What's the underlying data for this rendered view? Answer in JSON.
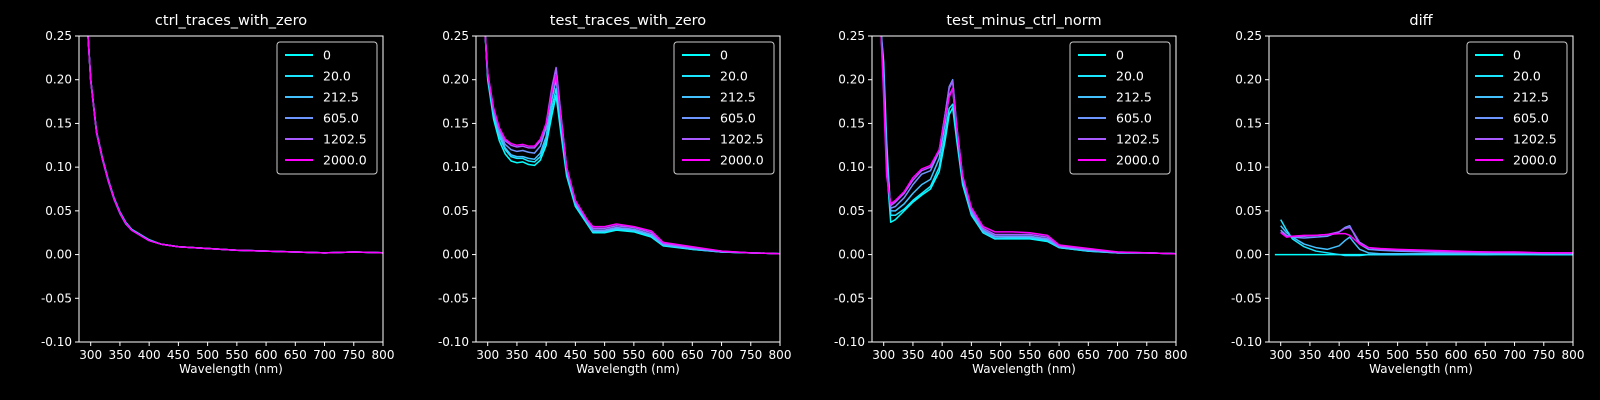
{
  "figure": {
    "background": "#000000",
    "foreground": "#ffffff"
  },
  "legend": {
    "labels": [
      "0",
      "20.0",
      "212.5",
      "605.0",
      "1202.5",
      "2000.0"
    ],
    "colors": [
      "#00ffff",
      "#1ae6ff",
      "#44c0ff",
      "#6e96ff",
      "#a85cff",
      "#ff00ff"
    ],
    "position": "upper right"
  },
  "chart_data": [
    {
      "type": "line",
      "title": "ctrl_traces_with_zero",
      "xlabel": "Wavelength (nm)",
      "ylabel": "",
      "xlim": [
        280,
        800
      ],
      "ylim": [
        -0.1,
        0.25
      ],
      "xticks": [
        300,
        350,
        400,
        450,
        500,
        550,
        600,
        650,
        700,
        750,
        800
      ],
      "yticks": [
        -0.1,
        -0.05,
        0.0,
        0.05,
        0.1,
        0.15,
        0.2,
        0.25
      ],
      "grid": false,
      "x": [
        295,
        300,
        310,
        320,
        330,
        340,
        350,
        360,
        370,
        380,
        400,
        420,
        450,
        500,
        550,
        600,
        650,
        700,
        750,
        800
      ],
      "series": [
        {
          "name": "0",
          "values": [
            0.255,
            0.2,
            0.14,
            0.11,
            0.085,
            0.064,
            0.048,
            0.036,
            0.028,
            0.024,
            0.016,
            0.012,
            0.009,
            0.007,
            0.005,
            0.004,
            0.003,
            0.002,
            0.003,
            0.002
          ]
        },
        {
          "name": "20.0",
          "values": [
            0.255,
            0.201,
            0.141,
            0.111,
            0.086,
            0.065,
            0.049,
            0.037,
            0.029,
            0.025,
            0.017,
            0.012,
            0.009,
            0.007,
            0.005,
            0.004,
            0.003,
            0.002,
            0.003,
            0.002
          ]
        },
        {
          "name": "212.5",
          "values": [
            0.255,
            0.2,
            0.14,
            0.11,
            0.085,
            0.064,
            0.048,
            0.036,
            0.028,
            0.024,
            0.016,
            0.012,
            0.009,
            0.007,
            0.005,
            0.004,
            0.003,
            0.002,
            0.003,
            0.002
          ]
        },
        {
          "name": "605.0",
          "values": [
            0.255,
            0.199,
            0.139,
            0.109,
            0.084,
            0.063,
            0.047,
            0.035,
            0.028,
            0.024,
            0.016,
            0.012,
            0.009,
            0.007,
            0.005,
            0.004,
            0.003,
            0.002,
            0.003,
            0.002
          ]
        },
        {
          "name": "1202.5",
          "values": [
            0.255,
            0.2,
            0.14,
            0.11,
            0.085,
            0.064,
            0.048,
            0.036,
            0.028,
            0.024,
            0.016,
            0.012,
            0.009,
            0.007,
            0.005,
            0.004,
            0.003,
            0.002,
            0.003,
            0.002
          ]
        },
        {
          "name": "2000.0",
          "values": [
            0.255,
            0.2,
            0.14,
            0.11,
            0.085,
            0.064,
            0.048,
            0.036,
            0.028,
            0.024,
            0.016,
            0.012,
            0.009,
            0.007,
            0.005,
            0.004,
            0.003,
            0.002,
            0.003,
            0.002
          ]
        }
      ]
    },
    {
      "type": "line",
      "title": "test_traces_with_zero",
      "xlabel": "Wavelength (nm)",
      "ylabel": "",
      "xlim": [
        280,
        800
      ],
      "ylim": [
        -0.1,
        0.25
      ],
      "xticks": [
        300,
        350,
        400,
        450,
        500,
        550,
        600,
        650,
        700,
        750,
        800
      ],
      "yticks": [
        -0.1,
        -0.05,
        0.0,
        0.05,
        0.1,
        0.15,
        0.2,
        0.25
      ],
      "grid": false,
      "x": [
        295,
        300,
        310,
        320,
        330,
        340,
        350,
        360,
        370,
        380,
        390,
        400,
        410,
        417,
        425,
        435,
        450,
        470,
        480,
        500,
        520,
        550,
        580,
        600,
        650,
        700,
        750,
        800
      ],
      "series": [
        {
          "name": "0",
          "values": [
            0.26,
            0.2,
            0.155,
            0.13,
            0.115,
            0.107,
            0.105,
            0.106,
            0.103,
            0.102,
            0.108,
            0.125,
            0.16,
            0.182,
            0.14,
            0.09,
            0.055,
            0.035,
            0.025,
            0.025,
            0.028,
            0.026,
            0.02,
            0.01,
            0.006,
            0.003,
            0.002,
            0.001
          ]
        },
        {
          "name": "20.0",
          "values": [
            0.26,
            0.203,
            0.16,
            0.135,
            0.12,
            0.112,
            0.11,
            0.11,
            0.107,
            0.106,
            0.112,
            0.13,
            0.168,
            0.19,
            0.147,
            0.093,
            0.057,
            0.036,
            0.026,
            0.026,
            0.029,
            0.027,
            0.021,
            0.011,
            0.006,
            0.003,
            0.002,
            0.001
          ]
        },
        {
          "name": "212.5",
          "values": [
            0.26,
            0.204,
            0.162,
            0.137,
            0.122,
            0.114,
            0.112,
            0.112,
            0.11,
            0.109,
            0.116,
            0.135,
            0.178,
            0.2,
            0.153,
            0.095,
            0.058,
            0.037,
            0.027,
            0.027,
            0.03,
            0.028,
            0.022,
            0.011,
            0.007,
            0.003,
            0.002,
            0.001
          ]
        },
        {
          "name": "605.0",
          "values": [
            0.26,
            0.206,
            0.165,
            0.14,
            0.126,
            0.12,
            0.118,
            0.119,
            0.117,
            0.116,
            0.124,
            0.145,
            0.19,
            0.213,
            0.16,
            0.098,
            0.06,
            0.038,
            0.028,
            0.028,
            0.031,
            0.029,
            0.023,
            0.012,
            0.007,
            0.003,
            0.002,
            0.001
          ]
        },
        {
          "name": "1202.5",
          "values": [
            0.26,
            0.207,
            0.167,
            0.143,
            0.13,
            0.125,
            0.123,
            0.124,
            0.122,
            0.122,
            0.13,
            0.15,
            0.192,
            0.214,
            0.162,
            0.1,
            0.061,
            0.039,
            0.03,
            0.03,
            0.033,
            0.031,
            0.025,
            0.013,
            0.008,
            0.004,
            0.002,
            0.001
          ]
        },
        {
          "name": "2000.0",
          "values": [
            0.26,
            0.208,
            0.168,
            0.145,
            0.132,
            0.127,
            0.125,
            0.126,
            0.124,
            0.124,
            0.132,
            0.15,
            0.186,
            0.205,
            0.158,
            0.1,
            0.062,
            0.04,
            0.032,
            0.032,
            0.035,
            0.032,
            0.027,
            0.014,
            0.009,
            0.004,
            0.002,
            0.001
          ]
        }
      ]
    },
    {
      "type": "line",
      "title": "test_minus_ctrl_norm",
      "xlabel": "Wavelength (nm)",
      "ylabel": "",
      "xlim": [
        280,
        800
      ],
      "ylim": [
        -0.1,
        0.25
      ],
      "xticks": [
        300,
        350,
        400,
        450,
        500,
        550,
        600,
        650,
        700,
        750,
        800
      ],
      "yticks": [
        -0.1,
        -0.05,
        0.0,
        0.05,
        0.1,
        0.15,
        0.2,
        0.25
      ],
      "grid": false,
      "x": [
        295,
        300,
        305,
        312,
        320,
        335,
        350,
        365,
        380,
        395,
        405,
        412,
        418,
        425,
        435,
        450,
        470,
        490,
        520,
        550,
        580,
        600,
        650,
        700,
        750,
        800
      ],
      "series": [
        {
          "name": "0",
          "values": [
            0.26,
            0.2,
            0.1,
            0.037,
            0.04,
            0.05,
            0.06,
            0.068,
            0.075,
            0.095,
            0.13,
            0.16,
            0.168,
            0.13,
            0.08,
            0.045,
            0.025,
            0.018,
            0.018,
            0.018,
            0.015,
            0.008,
            0.004,
            0.002,
            0.002,
            0.001
          ]
        },
        {
          "name": "20.0",
          "values": [
            0.26,
            0.22,
            0.13,
            0.045,
            0.045,
            0.052,
            0.062,
            0.07,
            0.078,
            0.1,
            0.138,
            0.167,
            0.172,
            0.133,
            0.082,
            0.046,
            0.025,
            0.018,
            0.019,
            0.019,
            0.016,
            0.008,
            0.004,
            0.002,
            0.002,
            0.001
          ]
        },
        {
          "name": "212.5",
          "values": [
            0.26,
            0.21,
            0.12,
            0.05,
            0.05,
            0.058,
            0.07,
            0.08,
            0.086,
            0.11,
            0.15,
            0.182,
            0.19,
            0.14,
            0.085,
            0.048,
            0.027,
            0.02,
            0.02,
            0.02,
            0.017,
            0.009,
            0.005,
            0.002,
            0.002,
            0.001
          ]
        },
        {
          "name": "605.0",
          "values": [
            0.26,
            0.2,
            0.1,
            0.053,
            0.055,
            0.065,
            0.08,
            0.092,
            0.096,
            0.118,
            0.16,
            0.192,
            0.2,
            0.145,
            0.088,
            0.05,
            0.028,
            0.021,
            0.021,
            0.021,
            0.018,
            0.009,
            0.005,
            0.002,
            0.002,
            0.001
          ]
        },
        {
          "name": "1202.5",
          "values": [
            0.26,
            0.19,
            0.095,
            0.056,
            0.06,
            0.07,
            0.085,
            0.096,
            0.1,
            0.12,
            0.16,
            0.19,
            0.198,
            0.147,
            0.09,
            0.052,
            0.03,
            0.023,
            0.023,
            0.023,
            0.02,
            0.01,
            0.006,
            0.003,
            0.002,
            0.001
          ]
        },
        {
          "name": "2000.0",
          "values": [
            0.26,
            0.18,
            0.09,
            0.058,
            0.062,
            0.072,
            0.088,
            0.098,
            0.102,
            0.12,
            0.156,
            0.18,
            0.19,
            0.145,
            0.09,
            0.054,
            0.032,
            0.026,
            0.026,
            0.025,
            0.022,
            0.011,
            0.007,
            0.003,
            0.002,
            0.001
          ]
        }
      ]
    },
    {
      "type": "line",
      "title": "diff",
      "xlabel": "Wavelength (nm)",
      "ylabel": "",
      "xlim": [
        280,
        800
      ],
      "ylim": [
        -0.1,
        0.25
      ],
      "xticks": [
        300,
        350,
        400,
        450,
        500,
        550,
        600,
        650,
        700,
        750,
        800
      ],
      "yticks": [
        -0.1,
        -0.05,
        0.0,
        0.05,
        0.1,
        0.15,
        0.2,
        0.25
      ],
      "grid": false,
      "x": [
        290,
        300,
        310,
        320,
        340,
        360,
        380,
        400,
        410,
        418,
        425,
        435,
        450,
        470,
        500,
        550,
        600,
        650,
        700,
        750,
        800
      ],
      "series": [
        {
          "name": "0",
          "values": [
            0.0,
            0.0,
            0.0,
            0.0,
            0.0,
            0.0,
            0.0,
            0.0,
            0.0,
            0.0,
            0.0,
            0.0,
            0.0,
            0.0,
            0.0,
            0.0,
            0.0,
            0.0,
            0.0,
            0.0,
            0.0
          ]
        },
        {
          "name": "20.0",
          "values": [
            null,
            0.04,
            0.028,
            0.018,
            0.009,
            0.004,
            0.002,
            0.0,
            -0.001,
            -0.001,
            -0.001,
            -0.001,
            0.0,
            0.0,
            0.0,
            0.001,
            0.001,
            0.0,
            0.001,
            0.0,
            0.0
          ]
        },
        {
          "name": "212.5",
          "values": [
            null,
            0.033,
            0.025,
            0.02,
            0.012,
            0.008,
            0.006,
            0.01,
            0.016,
            0.02,
            0.014,
            0.006,
            0.002,
            0.001,
            0.001,
            0.001,
            0.001,
            0.001,
            0.001,
            0.001,
            0.001
          ]
        },
        {
          "name": "605.0",
          "values": [
            null,
            0.028,
            0.022,
            0.02,
            0.019,
            0.02,
            0.021,
            0.026,
            0.031,
            0.033,
            0.024,
            0.012,
            0.006,
            0.005,
            0.004,
            0.003,
            0.002,
            0.002,
            0.002,
            0.002,
            0.001
          ]
        },
        {
          "name": "1202.5",
          "values": [
            null,
            0.026,
            0.021,
            0.021,
            0.021,
            0.022,
            0.023,
            0.026,
            0.03,
            0.031,
            0.025,
            0.014,
            0.008,
            0.006,
            0.005,
            0.004,
            0.003,
            0.003,
            0.002,
            0.002,
            0.002
          ]
        },
        {
          "name": "2000.0",
          "values": [
            null,
            0.025,
            0.02,
            0.021,
            0.022,
            0.022,
            0.023,
            0.024,
            0.024,
            0.022,
            0.018,
            0.012,
            0.008,
            0.007,
            0.006,
            0.005,
            0.004,
            0.003,
            0.003,
            0.002,
            0.002
          ]
        }
      ]
    }
  ]
}
